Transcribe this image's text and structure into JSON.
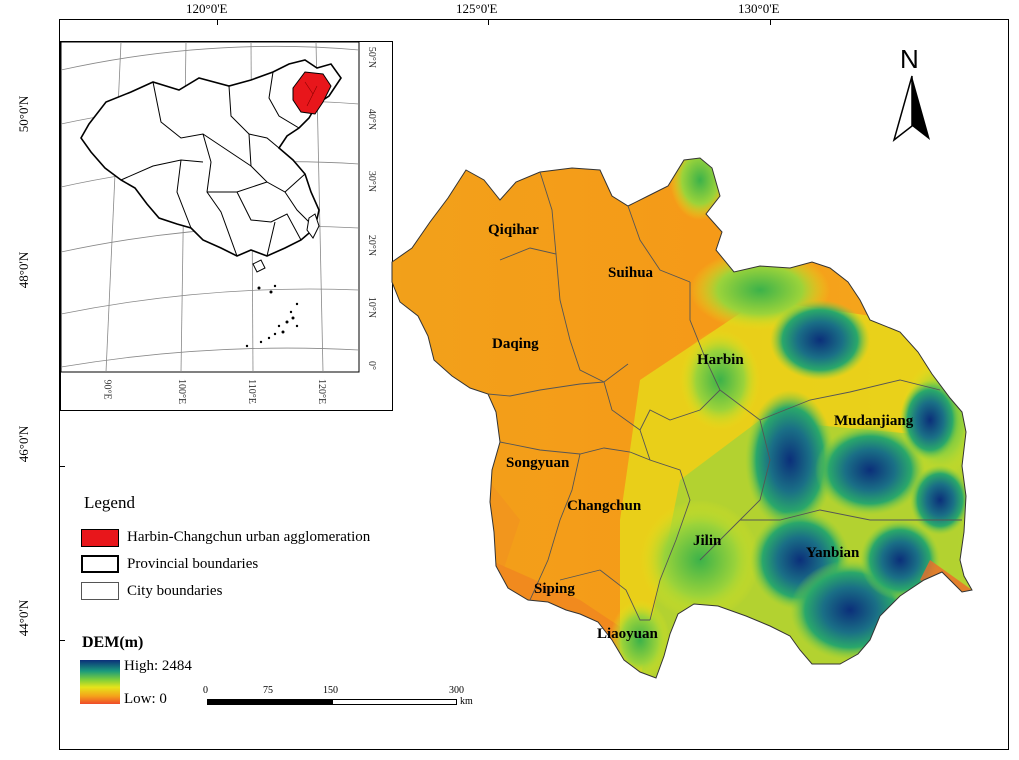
{
  "coords": {
    "top": [
      "120°0'E",
      "125°0'E",
      "130°0'E"
    ],
    "left": [
      "50°0'N",
      "48°0'N",
      "46°0'N",
      "44°0'N"
    ]
  },
  "inset": {
    "lat_labels": [
      "50°N",
      "40°N",
      "30°N",
      "20°N",
      "10°N",
      "0°"
    ],
    "lon_labels": [
      "90°E",
      "100°E",
      "110°E",
      "120°E"
    ]
  },
  "north_label": "N",
  "cities": [
    "Qiqihar",
    "Suihua",
    "Daqing",
    "Harbin",
    "Mudanjiang",
    "Songyuan",
    "Changchun",
    "Jilin",
    "Yanbian",
    "Siping",
    "Liaoyuan"
  ],
  "legend": {
    "title": "Legend",
    "items": [
      "Harbin-Changchun urban agglomeration",
      "Provincial boundaries",
      "City boundaries"
    ],
    "item_colors": [
      "#e8161b",
      "#ffffff",
      "#ffffff"
    ]
  },
  "dem": {
    "title": "DEM(m)",
    "high": "High: 2484",
    "low": "Low: 0",
    "ramp": [
      "#0b2f7a",
      "#1a9a7c",
      "#7fcf3a",
      "#e6e41a",
      "#f5a21a",
      "#ef4a2a"
    ]
  },
  "scalebar": {
    "ticks": [
      "0",
      "75",
      "150",
      "300"
    ],
    "unit": "km"
  }
}
